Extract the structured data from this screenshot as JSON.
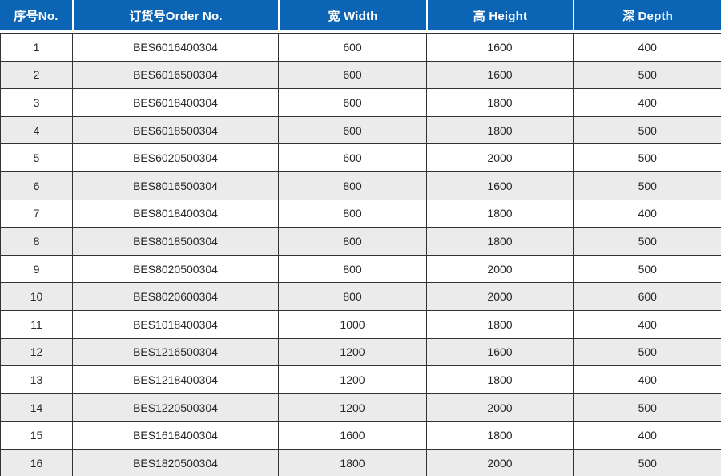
{
  "table": {
    "columns": [
      {
        "id": "no",
        "label": "序号No."
      },
      {
        "id": "order_no",
        "label": "订货号Order No."
      },
      {
        "id": "width",
        "label": "宽 Width"
      },
      {
        "id": "height",
        "label": "高 Height"
      },
      {
        "id": "depth",
        "label": "深 Depth"
      }
    ],
    "rows": [
      [
        "1",
        "BES6016400304",
        "600",
        "1600",
        "400"
      ],
      [
        "2",
        "BES6016500304",
        "600",
        "1600",
        "500"
      ],
      [
        "3",
        "BES6018400304",
        "600",
        "1800",
        "400"
      ],
      [
        "4",
        "BES6018500304",
        "600",
        "1800",
        "500"
      ],
      [
        "5",
        "BES6020500304",
        "600",
        "2000",
        "500"
      ],
      [
        "6",
        "BES8016500304",
        "800",
        "1600",
        "500"
      ],
      [
        "7",
        "BES8018400304",
        "800",
        "1800",
        "400"
      ],
      [
        "8",
        "BES8018500304",
        "800",
        "1800",
        "500"
      ],
      [
        "9",
        "BES8020500304",
        "800",
        "2000",
        "500"
      ],
      [
        "10",
        "BES8020600304",
        "800",
        "2000",
        "600"
      ],
      [
        "11",
        "BES1018400304",
        "1000",
        "1800",
        "400"
      ],
      [
        "12",
        "BES1216500304",
        "1200",
        "1600",
        "500"
      ],
      [
        "13",
        "BES1218400304",
        "1200",
        "1800",
        "400"
      ],
      [
        "14",
        "BES1220500304",
        "1200",
        "2000",
        "500"
      ],
      [
        "15",
        "BES1618400304",
        "1600",
        "1800",
        "400"
      ],
      [
        "16",
        "BES1820500304",
        "1800",
        "2000",
        "500"
      ]
    ],
    "style": {
      "header_bg": "#0c64b4",
      "header_text": "#ffffff",
      "row_even_bg": "#ebebeb",
      "row_odd_bg": "#ffffff",
      "border_color": "#333333",
      "body_text": "#262626"
    }
  }
}
